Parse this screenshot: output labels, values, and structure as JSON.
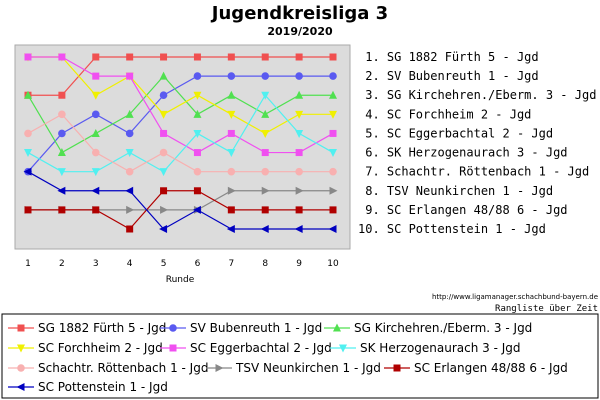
{
  "header": {
    "title": "Jugendkreisliga 3",
    "subtitle": "2019/2020",
    "url": "http://www.ligamanager.schachbund-bayern.de",
    "note": "Rangliste über Zeit"
  },
  "chart_data": {
    "type": "line",
    "title": "Jugendkreisliga 3",
    "subtitle": "2019/2020",
    "xlabel": "Runde",
    "ylabel": "",
    "x": [
      1,
      2,
      3,
      4,
      5,
      6,
      7,
      8,
      9,
      10
    ],
    "xlim": [
      1,
      10
    ],
    "ylim": [
      1,
      10
    ],
    "y_inverted": true,
    "grid": false,
    "legend_position": "bottom",
    "rank_labels": [
      " 1. SG 1882 Fürth 5 - Jgd",
      " 2. SV Bubenreuth 1 - Jgd",
      " 3. SG Kirchehren./Eberm. 3 - Jgd",
      " 4. SC Forchheim 2 - Jgd",
      " 5. SC Eggerbachtal 2 - Jgd",
      " 6. SK Herzogenaurach 3 - Jgd",
      " 7. Schachtr. Röttenbach 1 - Jgd",
      " 8. TSV Neunkirchen 1 - Jgd",
      " 9. SC Erlangen 48/88 6 - Jgd",
      "10. SC Pottenstein 1 - Jgd"
    ],
    "series": [
      {
        "name": "SG 1882 Fürth 5 - Jgd",
        "color": "#f05050",
        "marker": "square",
        "values": [
          3,
          3,
          1,
          1,
          1,
          1,
          1,
          1,
          1,
          1
        ]
      },
      {
        "name": "SV Bubenreuth 1 - Jgd",
        "color": "#5a5af0",
        "marker": "circle",
        "values": [
          7,
          5,
          4,
          5,
          3,
          2,
          2,
          2,
          2,
          2
        ]
      },
      {
        "name": "SG Kirchehren./Eberm. 3 - Jgd",
        "color": "#50e050",
        "marker": "triangle-up",
        "values": [
          3,
          6,
          5,
          4,
          2,
          4,
          3,
          4,
          3,
          3
        ]
      },
      {
        "name": "SC Forchheim 2 - Jgd",
        "color": "#f0f000",
        "marker": "triangle-down",
        "values": [
          1,
          1,
          3,
          2,
          4,
          3,
          4,
          5,
          4,
          4
        ]
      },
      {
        "name": "SC Eggerbachtal 2 - Jgd",
        "color": "#f050f0",
        "marker": "square",
        "values": [
          1,
          1,
          2,
          2,
          5,
          6,
          5,
          6,
          6,
          5
        ]
      },
      {
        "name": "SK Herzogenaurach 3 - Jgd",
        "color": "#50f0f0",
        "marker": "triangle-down",
        "values": [
          6,
          7,
          7,
          6,
          7,
          5,
          6,
          3,
          5,
          6
        ]
      },
      {
        "name": "Schachtr. Röttenbach 1 - Jgd",
        "color": "#f8b0b0",
        "marker": "circle",
        "values": [
          5,
          4,
          6,
          7,
          6,
          7,
          7,
          7,
          7,
          7
        ]
      },
      {
        "name": "TSV Neunkirchen 1 - Jgd",
        "color": "#888888",
        "marker": "triangle-right",
        "values": [
          9,
          9,
          9,
          9,
          9,
          9,
          8,
          8,
          8,
          8
        ]
      },
      {
        "name": "SC Erlangen 48/88 6 - Jgd",
        "color": "#b00000",
        "marker": "square",
        "values": [
          9,
          9,
          9,
          10,
          8,
          8,
          9,
          9,
          9,
          9
        ]
      },
      {
        "name": "SC Pottenstein 1 - Jgd",
        "color": "#0000c0",
        "marker": "triangle-left",
        "values": [
          7,
          8,
          8,
          8,
          10,
          9,
          10,
          10,
          10,
          10
        ]
      }
    ]
  }
}
